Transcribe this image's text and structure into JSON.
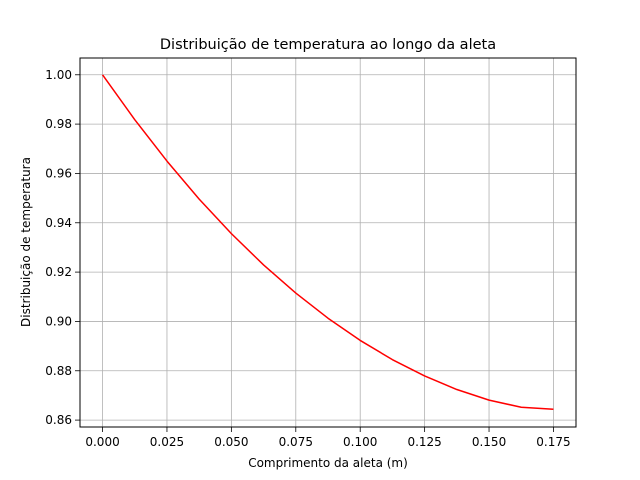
{
  "chart_data": {
    "type": "line",
    "title": "Distribuição de temperatura ao longo da aleta",
    "xlabel": "Comprimento da aleta (m)",
    "ylabel": "Distribuição de temperatura",
    "xlim": [
      -0.00875,
      0.18375
    ],
    "ylim": [
      0.8572,
      1.0068
    ],
    "x_ticks": [
      0.0,
      0.025,
      0.05,
      0.075,
      0.1,
      0.125,
      0.15,
      0.175
    ],
    "x_tick_labels": [
      "0.000",
      "0.025",
      "0.050",
      "0.075",
      "0.100",
      "0.125",
      "0.150",
      "0.175"
    ],
    "y_ticks": [
      0.86,
      0.88,
      0.9,
      0.92,
      0.94,
      0.96,
      0.98,
      1.0
    ],
    "y_tick_labels": [
      "0.86",
      "0.88",
      "0.90",
      "0.92",
      "0.94",
      "0.96",
      "0.98",
      "1.00"
    ],
    "grid": true,
    "series": [
      {
        "color": "#ff0000",
        "x": [
          0.0,
          0.0125,
          0.025,
          0.0375,
          0.05,
          0.0625,
          0.075,
          0.0875,
          0.1,
          0.1125,
          0.125,
          0.1375,
          0.15,
          0.1625,
          0.175
        ],
        "y": [
          1.0,
          0.9818,
          0.965,
          0.9496,
          0.9356,
          0.9229,
          0.9115,
          0.9013,
          0.8923,
          0.8845,
          0.8779,
          0.8724,
          0.8681,
          0.8652,
          0.8644
        ]
      }
    ]
  }
}
